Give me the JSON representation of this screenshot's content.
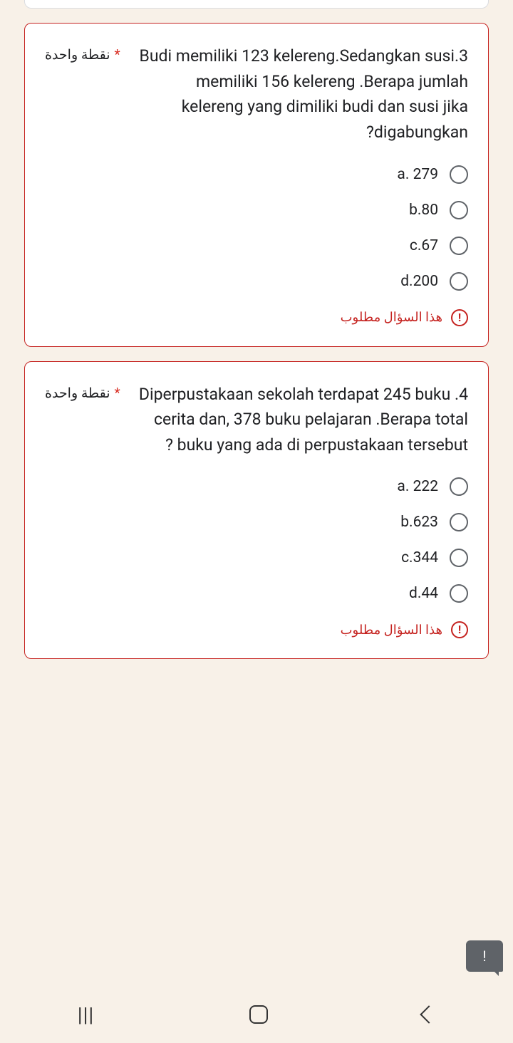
{
  "points_label": "نقطة واحدة",
  "required_asterisk": "*",
  "error_text": "هذا السؤال مطلوب",
  "q1": {
    "text": "3.Budi memiliki 123 kelereng.Sedangkan  susi  memiliki 156 kelereng .Berapa jumlah kelereng  yang dimiliki  budi dan susi  jika  digabungkan?",
    "options": [
      "a. 279",
      "b.80",
      "c.67",
      "d.200"
    ]
  },
  "q2": {
    "text": "4. Diperpustakaan sekolah terdapat 245   buku  cerita dan, 378  buku  pelajaran .Berapa total buku  yang ada di perpustakaan tersebut ?",
    "options": [
      "a. 222",
      "b.623",
      "c.344",
      "d.44"
    ]
  },
  "colors": {
    "background": "#f8f1e8",
    "card_bg": "#ffffff",
    "error_border": "#c5221f",
    "text": "#202124",
    "radio_border": "#5f6368",
    "required": "#d93025"
  }
}
